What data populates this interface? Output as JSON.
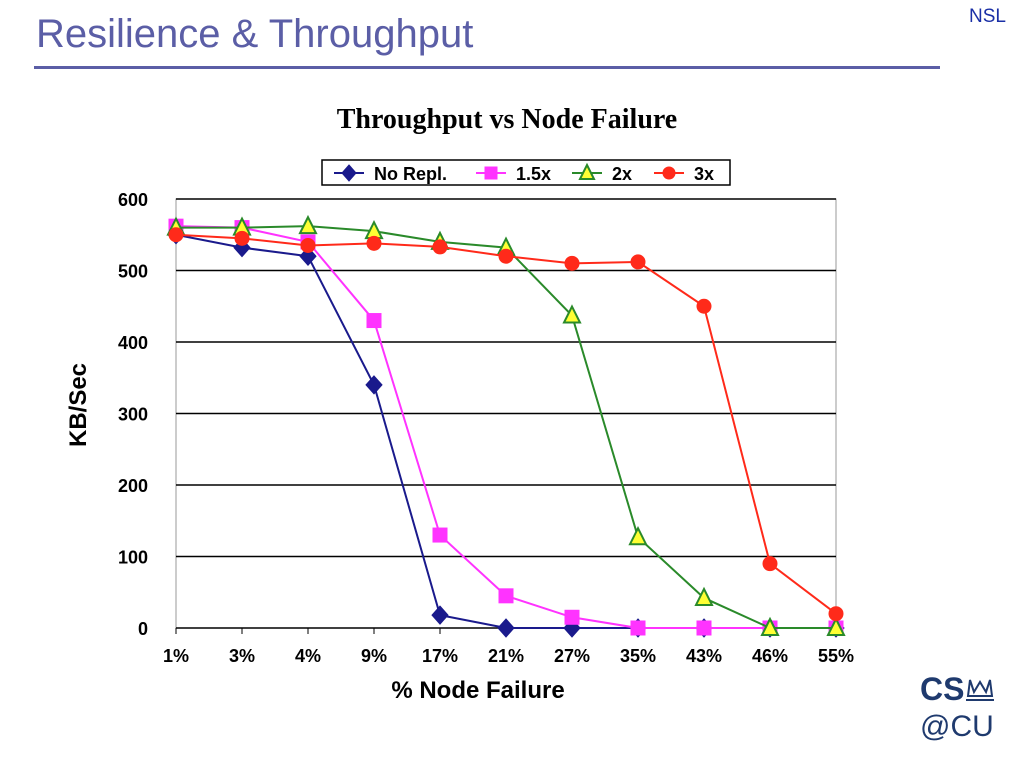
{
  "slide": {
    "title": "Resilience & Throughput",
    "corner_tag": "NSL",
    "title_color": "#5b5ea6"
  },
  "logo": {
    "line1": "CS",
    "line2": "@CU",
    "icon": "crown-icon",
    "color": "#1f3a6e",
    "accent": "#8fb3e6"
  },
  "chart_data": {
    "type": "line",
    "title": "Throughput vs Node Failure",
    "xlabel": "% Node Failure",
    "ylabel": "KB/Sec",
    "categories": [
      "1%",
      "3%",
      "4%",
      "9%",
      "17%",
      "21%",
      "27%",
      "35%",
      "43%",
      "46%",
      "55%"
    ],
    "ylim": [
      0,
      600
    ],
    "yticks": [
      0,
      100,
      200,
      300,
      400,
      500,
      600
    ],
    "grid": "horizontal",
    "legend_position": "top",
    "series": [
      {
        "name": "No Repl.",
        "color": "#1a1a8c",
        "marker": "diamond",
        "values": [
          550,
          532,
          520,
          340,
          18,
          0,
          0,
          0,
          0,
          0,
          0
        ]
      },
      {
        "name": "1.5x",
        "color": "#ff33ff",
        "marker": "square",
        "values": [
          562,
          560,
          540,
          430,
          130,
          45,
          15,
          0,
          0,
          0,
          0
        ]
      },
      {
        "name": "2x",
        "color": "#2a8a2a",
        "fill": "#ffff33",
        "marker": "triangle",
        "values": [
          560,
          560,
          562,
          555,
          540,
          532,
          437,
          127,
          42,
          0,
          0
        ]
      },
      {
        "name": "3x",
        "color": "#ff2a1a",
        "marker": "circle",
        "values": [
          550,
          545,
          535,
          538,
          533,
          520,
          510,
          512,
          450,
          90,
          20
        ]
      }
    ]
  }
}
